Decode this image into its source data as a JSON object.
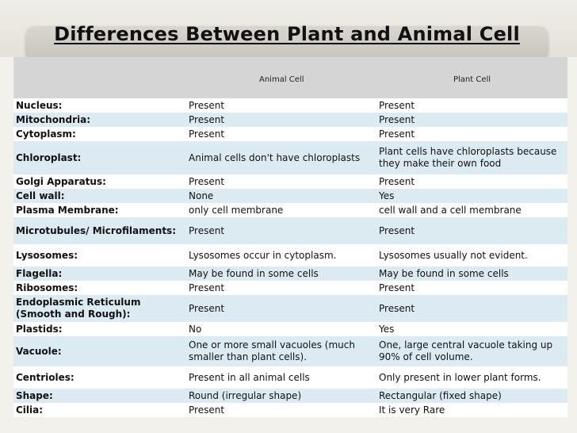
{
  "title": "Differences Between Plant and Animal Cell",
  "table": {
    "headers": [
      "",
      "Animal Cell",
      "Plant Cell"
    ],
    "rows": [
      {
        "feature": "Nucleus:",
        "animal": "Present",
        "plant": "Present"
      },
      {
        "feature": "Mitochondria:",
        "animal": "Present",
        "plant": "Present"
      },
      {
        "feature": "Cytoplasm:",
        "animal": "Present",
        "plant": "Present"
      },
      {
        "feature": "Chloroplast:",
        "animal": "Animal cells don't have chloroplasts",
        "plant": "Plant cells have chloroplasts because they make their own food"
      },
      {
        "feature": "Golgi Apparatus:",
        "animal": "Present",
        "plant": "Present"
      },
      {
        "feature": "Cell wall:",
        "animal": "None",
        "plant": "Yes"
      },
      {
        "feature": "Plasma Membrane:",
        "animal": "only cell membrane",
        "plant": "cell wall and a cell membrane"
      },
      {
        "feature": "Microtubules/ Microfilaments:",
        "animal": "Present",
        "plant": "Present"
      },
      {
        "feature": "Lysosomes:",
        "animal": "Lysosomes occur in cytoplasm.",
        "plant": "Lysosomes usually not evident."
      },
      {
        "feature": "Flagella:",
        "animal": "May be found in some cells",
        "plant": "May be found in some cells"
      },
      {
        "feature": "Ribosomes:",
        "animal": "Present",
        "plant": "Present"
      },
      {
        "feature": "Endoplasmic Reticulum (Smooth and Rough):",
        "animal": "Present",
        "plant": "Present"
      },
      {
        "feature": "Plastids:",
        "animal": "No",
        "plant": "Yes"
      },
      {
        "feature": "Vacuole:",
        "animal": "One or more small vacuoles (much smaller than plant cells).",
        "plant": "One, large central vacuole taking up 90% of cell volume."
      },
      {
        "feature": "Centrioles:",
        "animal": "Present in all animal cells",
        "plant": "Only present in lower plant forms."
      },
      {
        "feature": "Shape:",
        "animal": "Round (irregular shape)",
        "plant": "Rectangular (fixed shape)"
      },
      {
        "feature": "Cilia:",
        "animal": "Present",
        "plant": "It is very Rare"
      }
    ]
  }
}
